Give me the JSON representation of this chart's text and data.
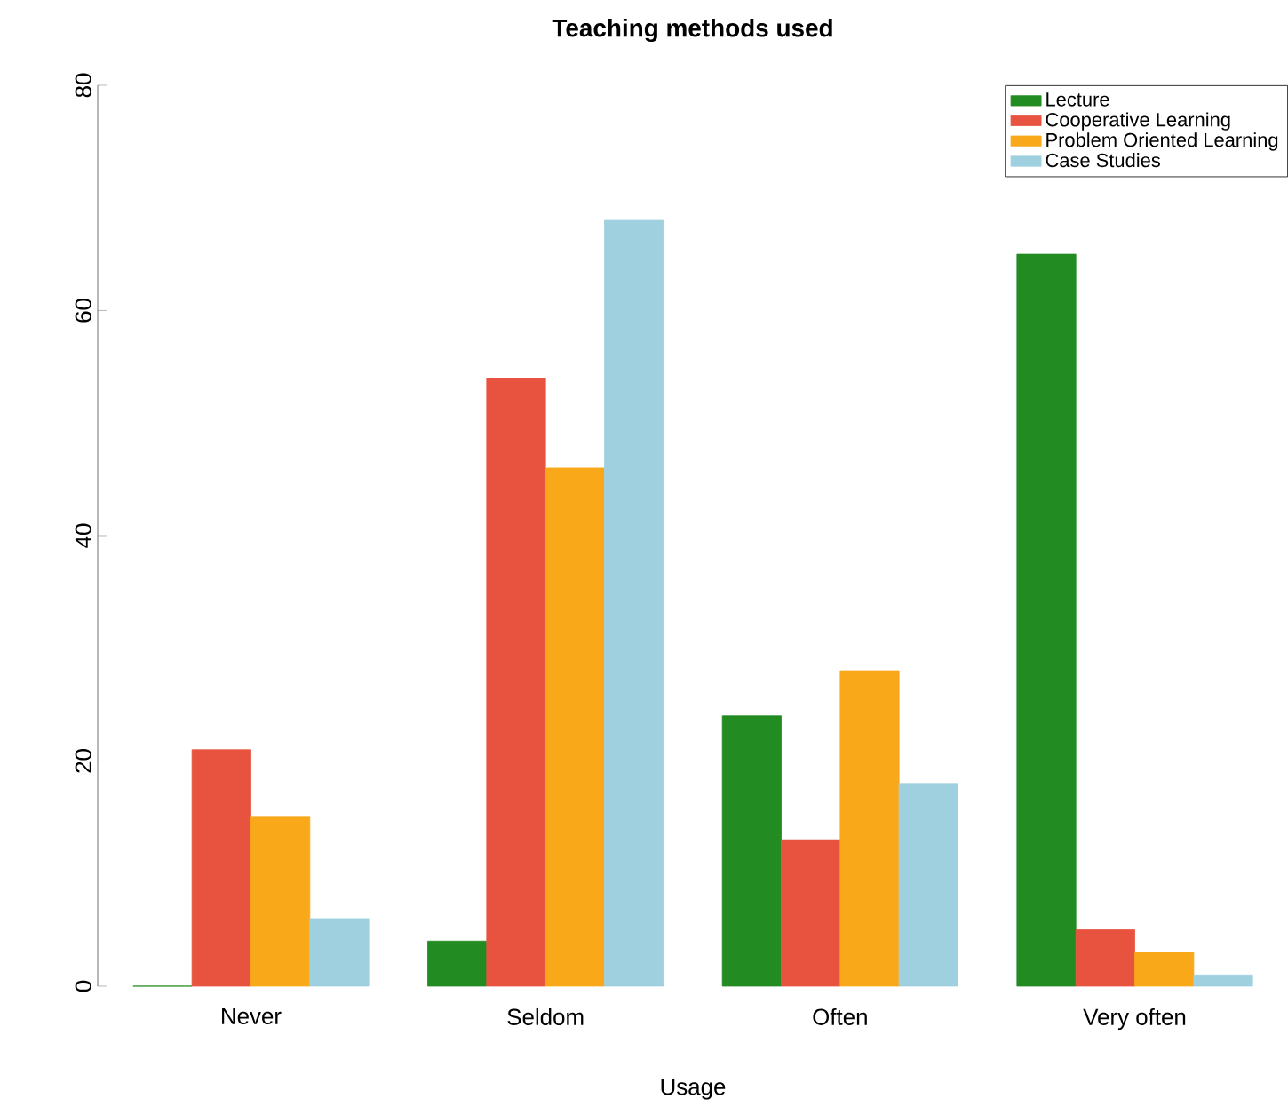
{
  "chart_data": {
    "type": "bar",
    "title": "Teaching methods used",
    "xlabel": "Usage",
    "categories": [
      "Never",
      "Seldom",
      "Often",
      "Very often"
    ],
    "series": [
      {
        "name": "Lecture",
        "color": "#228b22",
        "values": [
          0,
          4,
          24,
          65
        ]
      },
      {
        "name": "Cooperative Learning",
        "color": "#e8533f",
        "values": [
          21,
          54,
          13,
          5
        ]
      },
      {
        "name": "Problem Oriented Learning",
        "color": "#f9a81a",
        "values": [
          15,
          46,
          28,
          3
        ]
      },
      {
        "name": "Case Studies",
        "color": "#9fd0e0",
        "values": [
          6,
          68,
          18,
          1
        ]
      }
    ],
    "ylim": [
      0,
      80
    ],
    "yticks": [
      0,
      20,
      40,
      60,
      80
    ],
    "grid": false,
    "legend": "top right"
  }
}
